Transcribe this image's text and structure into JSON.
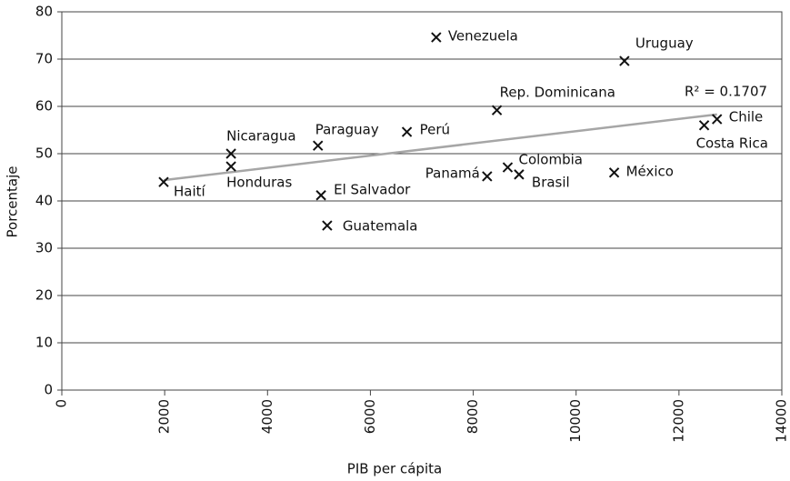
{
  "chart_data": {
    "type": "scatter",
    "x_label": "PIB per cápita",
    "y_label": "Porcentaje",
    "xlim": [
      0,
      14000
    ],
    "xticks": [
      0,
      2000,
      4000,
      6000,
      8000,
      10000,
      12000,
      14000
    ],
    "ylim": [
      0,
      80
    ],
    "yticks": [
      0,
      10,
      20,
      30,
      40,
      50,
      60,
      70,
      80
    ],
    "grid": true,
    "color": "#111111",
    "labels": [
      "Haití",
      "Nicaragua",
      "Honduras",
      "Paraguay",
      "El Salvador",
      "Guatemala",
      "Perú",
      "Venezuela",
      "Rep. Dominicana",
      "Panamá",
      "Colombia",
      "Brasil",
      "México",
      "Uruguay",
      "Costa Rica",
      "Chile"
    ],
    "x": [
      1980,
      3290,
      3290,
      4980,
      5040,
      5160,
      6710,
      7280,
      8460,
      8270,
      8670,
      8890,
      10740,
      10940,
      12490,
      12740
    ],
    "values": [
      44.0,
      50.0,
      47.3,
      51.7,
      41.2,
      34.8,
      54.6,
      74.6,
      59.2,
      45.2,
      47.1,
      45.6,
      46.0,
      69.6,
      56.0,
      57.3
    ],
    "trendline": {
      "x": [
        1980,
        12740
      ],
      "values": [
        44.4,
        58.3
      ],
      "color": "#a6a6a6",
      "label": "R² = 0.1707"
    }
  }
}
